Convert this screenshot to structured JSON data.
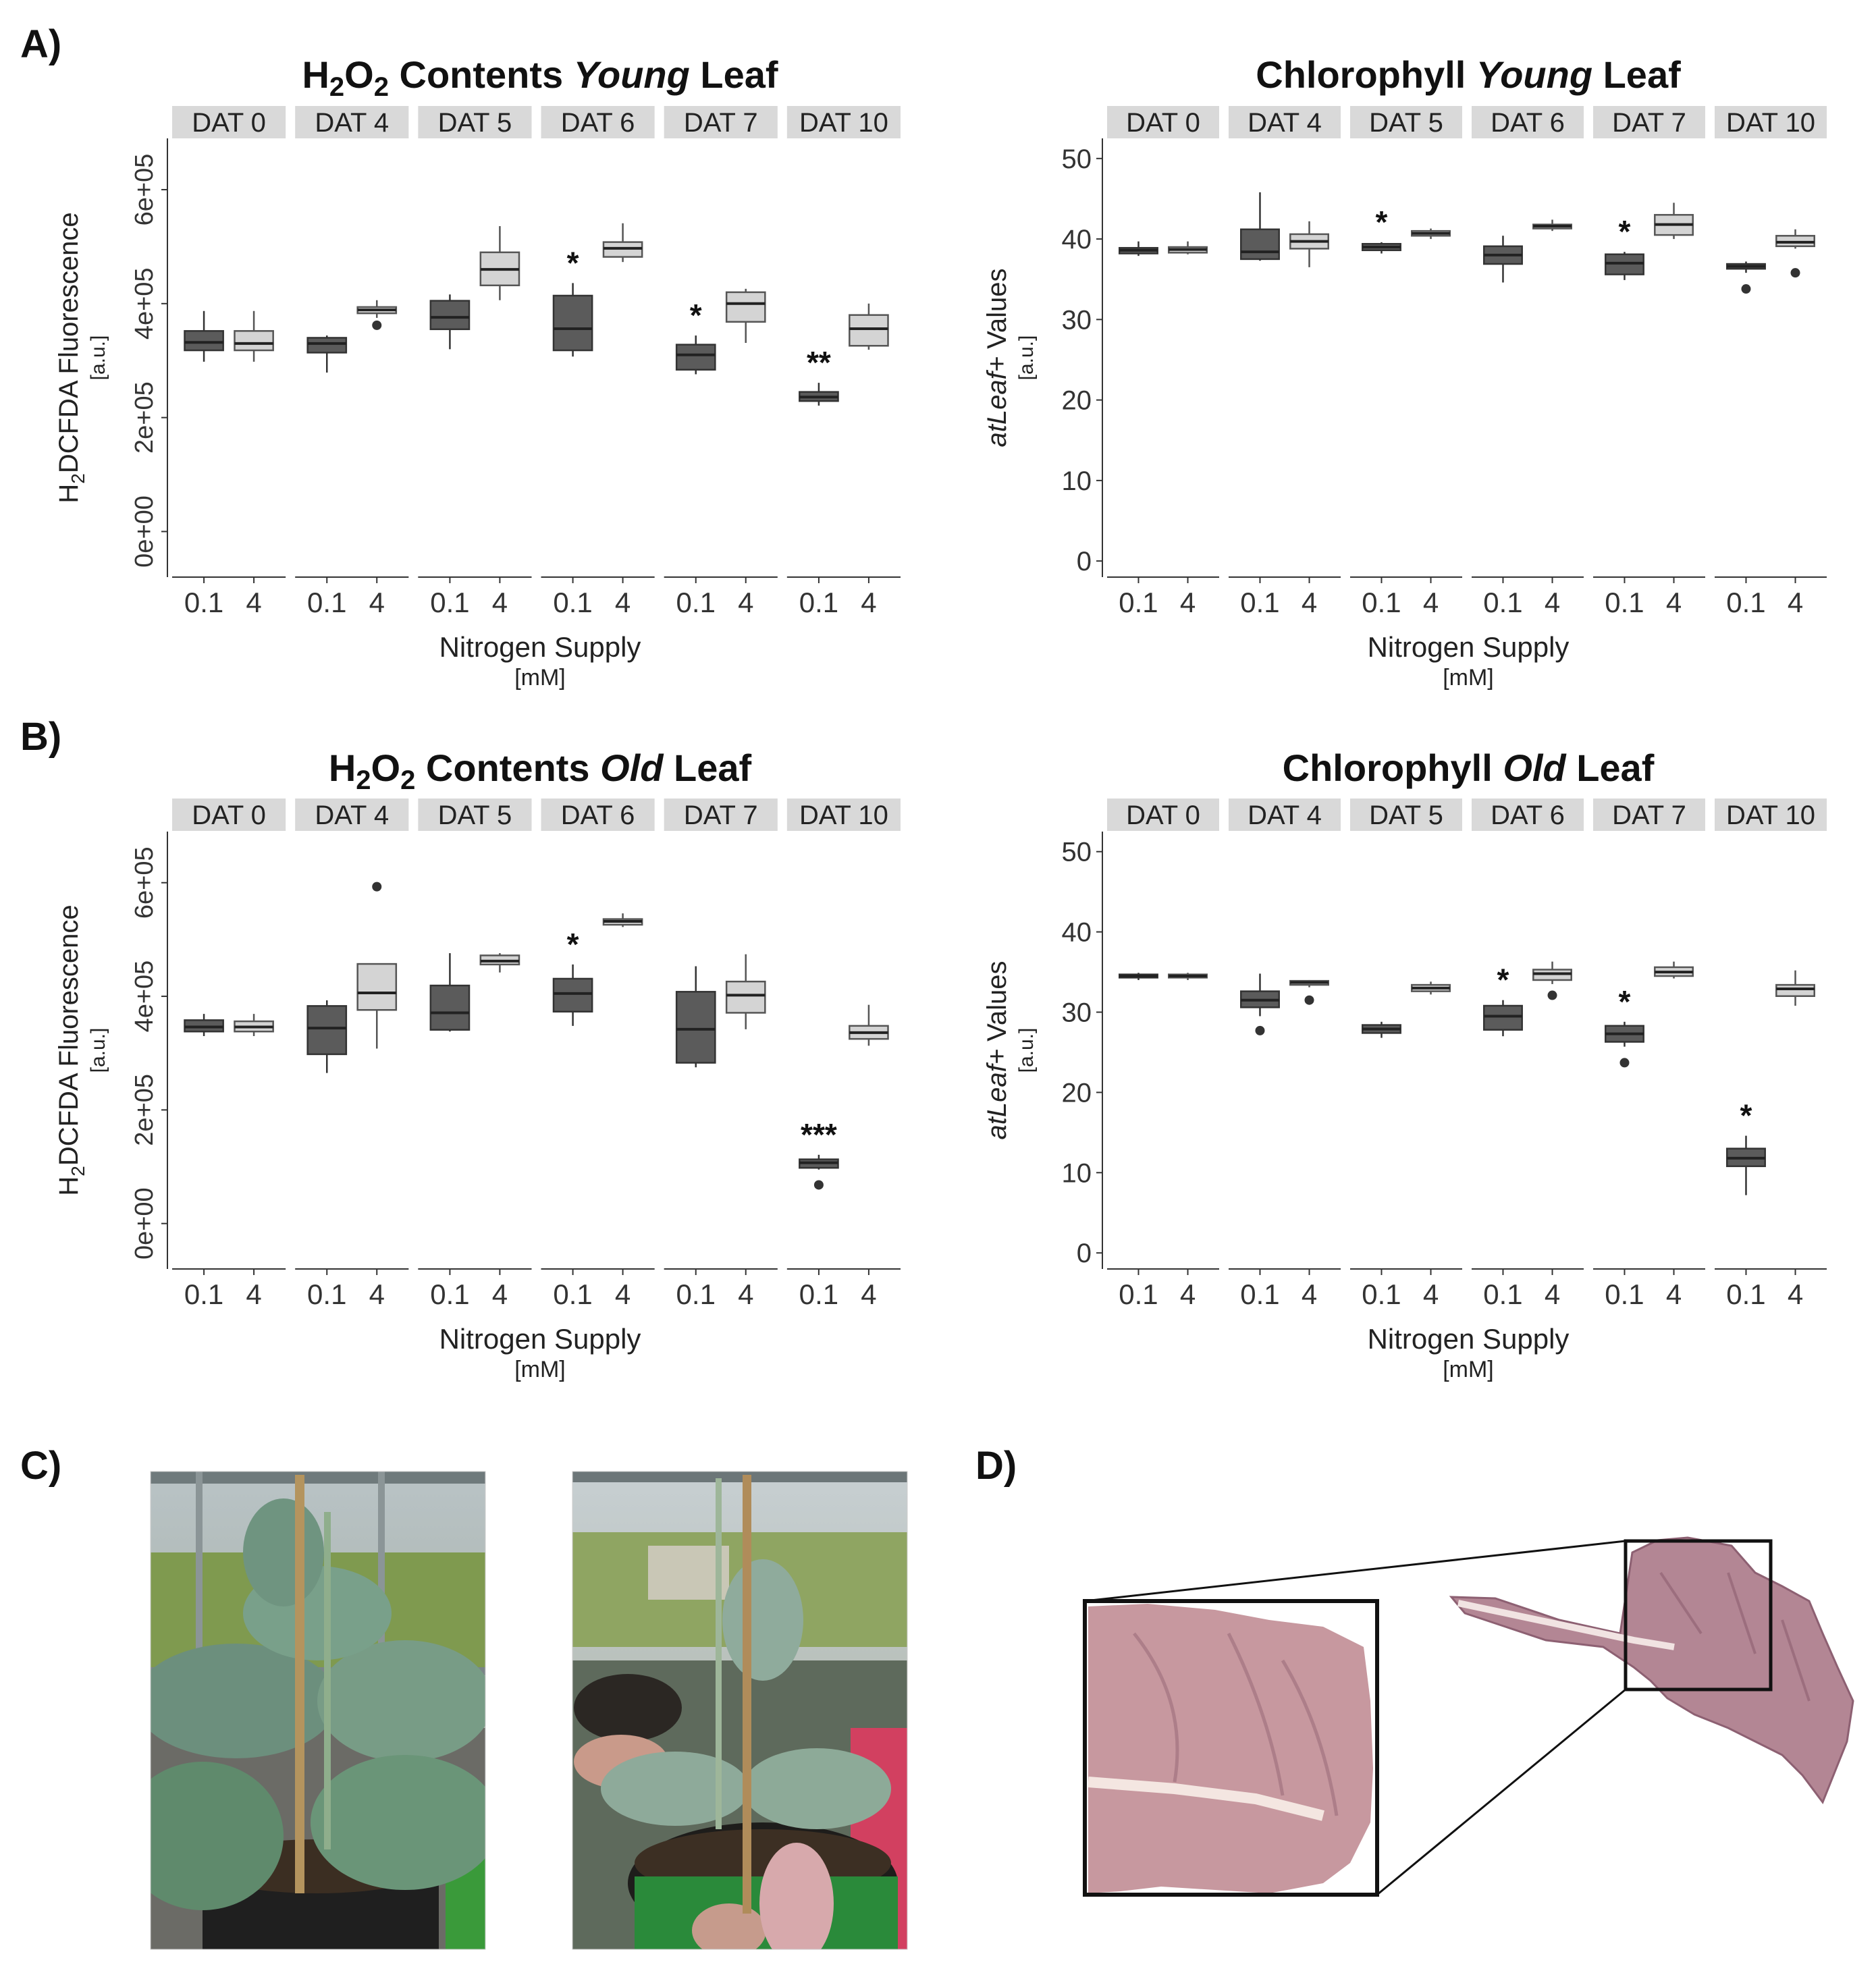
{
  "panel_labels": {
    "a": "A)",
    "b": "B)",
    "c": "C)",
    "d": "D)"
  },
  "colors": {
    "low_n": "#5b5b5b",
    "high_n": "#d4d4d4",
    "strip": "#d9d9d9",
    "axis": "#333333"
  },
  "photos": {
    "c_left": "healthy-plant-photo",
    "c_right": "senescing-plant-photo",
    "d_leaf": "purple-leaf-photo",
    "d_inset": "leaf-zoom-inset"
  },
  "chart_data": [
    {
      "id": "h2o2_young",
      "type": "boxplot",
      "title": {
        "pre": "H",
        "sub1": "2",
        "mid": "O",
        "sub2": "2",
        "post": " Contents ",
        "italic": "Young",
        "end": " Leaf"
      },
      "ylabel": {
        "pre": "H",
        "sub": "2",
        "post": "DCFDA Fluorescence",
        "unit": "[a.u.]"
      },
      "xlabel": "Nitrogen Supply",
      "xunit": "[mM]",
      "ylim": [
        -80000,
        690000
      ],
      "yticks": [
        0,
        200000,
        400000,
        600000
      ],
      "ytick_labels": [
        "0e+00",
        "2e+05",
        "4e+05",
        "6e+05"
      ],
      "ytick_rotated": true,
      "facets": [
        "DAT 0",
        "DAT 4",
        "DAT 5",
        "DAT 6",
        "DAT 7",
        "DAT 10"
      ],
      "categories": [
        "0.1",
        "4"
      ],
      "boxes": [
        [
          {
            "min": 298000,
            "q1": 318000,
            "med": 332000,
            "q3": 352000,
            "max": 387000,
            "out": [],
            "sig": ""
          },
          {
            "min": 298000,
            "q1": 318000,
            "med": 330000,
            "q3": 352000,
            "max": 387000,
            "out": [],
            "sig": ""
          }
        ],
        [
          {
            "min": 279000,
            "q1": 314000,
            "med": 330000,
            "q3": 340000,
            "max": 344000,
            "out": [],
            "sig": ""
          },
          {
            "min": 375000,
            "q1": 383000,
            "med": 389000,
            "q3": 394000,
            "max": 406000,
            "out": [
              362000
            ],
            "sig": ""
          }
        ],
        [
          {
            "min": 320000,
            "q1": 355000,
            "med": 376000,
            "q3": 405000,
            "max": 416000,
            "out": [],
            "sig": ""
          },
          {
            "min": 406000,
            "q1": 432000,
            "med": 460000,
            "q3": 490000,
            "max": 536000,
            "out": [],
            "sig": ""
          }
        ],
        [
          {
            "min": 307000,
            "q1": 318000,
            "med": 356000,
            "q3": 414000,
            "max": 436000,
            "out": [],
            "sig": "*"
          },
          {
            "min": 473000,
            "q1": 482000,
            "med": 497000,
            "q3": 508000,
            "max": 541000,
            "out": [],
            "sig": ""
          }
        ],
        [
          {
            "min": 276000,
            "q1": 284000,
            "med": 310000,
            "q3": 328000,
            "max": 344000,
            "out": [],
            "sig": "*"
          },
          {
            "min": 331000,
            "q1": 368000,
            "med": 400000,
            "q3": 420000,
            "max": 426000,
            "out": [],
            "sig": ""
          }
        ],
        [
          {
            "min": 221000,
            "q1": 229000,
            "med": 236000,
            "q3": 245000,
            "max": 261000,
            "out": [],
            "sig": "**"
          },
          {
            "min": 319000,
            "q1": 326000,
            "med": 356000,
            "q3": 380000,
            "max": 400000,
            "out": [],
            "sig": ""
          }
        ]
      ]
    },
    {
      "id": "chl_young",
      "type": "boxplot",
      "title": {
        "pre": "Chlorophyll ",
        "italic": "Young",
        "end": " Leaf"
      },
      "ylabel": {
        "italic": "atLeaf+",
        "post": " Values",
        "unit": "[a.u.]"
      },
      "xlabel": "Nitrogen Supply",
      "xunit": "[mM]",
      "ylim": [
        -2,
        52.5
      ],
      "yticks": [
        0,
        10,
        20,
        30,
        40,
        50
      ],
      "ytick_labels": [
        "0",
        "10",
        "20",
        "30",
        "40",
        "50"
      ],
      "ytick_rotated": false,
      "facets": [
        "DAT 0",
        "DAT 4",
        "DAT 5",
        "DAT 6",
        "DAT 7",
        "DAT 10"
      ],
      "categories": [
        "0.1",
        "4"
      ],
      "boxes": [
        [
          {
            "min": 37.9,
            "q1": 38.2,
            "med": 38.6,
            "q3": 38.9,
            "max": 39.7,
            "out": [],
            "sig": ""
          },
          {
            "min": 38.1,
            "q1": 38.3,
            "med": 38.7,
            "q3": 39.0,
            "max": 39.7,
            "out": [],
            "sig": ""
          }
        ],
        [
          {
            "min": 37.3,
            "q1": 37.5,
            "med": 38.4,
            "q3": 41.2,
            "max": 45.8,
            "out": [],
            "sig": ""
          },
          {
            "min": 36.5,
            "q1": 38.8,
            "med": 39.7,
            "q3": 40.6,
            "max": 42.2,
            "out": [],
            "sig": ""
          }
        ],
        [
          {
            "min": 38.2,
            "q1": 38.6,
            "med": 39.0,
            "q3": 39.4,
            "max": 39.6,
            "out": [],
            "sig": "*"
          },
          {
            "min": 40.0,
            "q1": 40.4,
            "med": 40.7,
            "q3": 41.0,
            "max": 41.3,
            "out": [],
            "sig": ""
          }
        ],
        [
          {
            "min": 34.6,
            "q1": 36.9,
            "med": 38.0,
            "q3": 39.1,
            "max": 40.4,
            "out": [],
            "sig": ""
          },
          {
            "min": 41.0,
            "q1": 41.3,
            "med": 41.6,
            "q3": 41.8,
            "max": 42.4,
            "out": [],
            "sig": ""
          }
        ],
        [
          {
            "min": 34.9,
            "q1": 35.6,
            "med": 37.0,
            "q3": 38.1,
            "max": 38.4,
            "out": [],
            "sig": "*"
          },
          {
            "min": 40.0,
            "q1": 40.5,
            "med": 41.8,
            "q3": 43.0,
            "max": 44.5,
            "out": [],
            "sig": ""
          }
        ],
        [
          {
            "min": 35.8,
            "q1": 36.3,
            "med": 36.6,
            "q3": 36.9,
            "max": 37.2,
            "out": [
              33.8
            ],
            "sig": ""
          },
          {
            "min": 38.8,
            "q1": 39.1,
            "med": 39.6,
            "q3": 40.4,
            "max": 41.2,
            "out": [
              35.8
            ],
            "sig": ""
          }
        ]
      ]
    },
    {
      "id": "h2o2_old",
      "type": "boxplot",
      "title": {
        "pre": "H",
        "sub1": "2",
        "mid": "O",
        "sub2": "2",
        "post": " Contents ",
        "italic": "Old",
        "end": " Leaf"
      },
      "ylabel": {
        "pre": "H",
        "sub": "2",
        "post": "DCFDA Fluorescence",
        "unit": "[a.u.]"
      },
      "xlabel": "Nitrogen Supply",
      "xunit": "[mM]",
      "ylim": [
        -80000,
        690000
      ],
      "yticks": [
        0,
        200000,
        400000,
        600000
      ],
      "ytick_labels": [
        "0e+00",
        "2e+05",
        "4e+05",
        "6e+05"
      ],
      "ytick_rotated": true,
      "facets": [
        "DAT 0",
        "DAT 4",
        "DAT 5",
        "DAT 6",
        "DAT 7",
        "DAT 10"
      ],
      "categories": [
        "0.1",
        "4"
      ],
      "boxes": [
        [
          {
            "min": 330000,
            "q1": 338000,
            "med": 346000,
            "q3": 358000,
            "max": 369000,
            "out": [],
            "sig": ""
          },
          {
            "min": 330000,
            "q1": 338000,
            "med": 346000,
            "q3": 356000,
            "max": 369000,
            "out": [],
            "sig": ""
          }
        ],
        [
          {
            "min": 265000,
            "q1": 298000,
            "med": 344000,
            "q3": 383000,
            "max": 393000,
            "out": [],
            "sig": ""
          },
          {
            "min": 308000,
            "q1": 376000,
            "med": 406000,
            "q3": 457000,
            "max": 457000,
            "out": [
              593000
            ],
            "sig": ""
          }
        ],
        [
          {
            "min": 338000,
            "q1": 341000,
            "med": 371000,
            "q3": 419000,
            "max": 476000,
            "out": [],
            "sig": ""
          },
          {
            "min": 442000,
            "q1": 456000,
            "med": 462000,
            "q3": 472000,
            "max": 476000,
            "out": [],
            "sig": ""
          }
        ],
        [
          {
            "min": 348000,
            "q1": 373000,
            "med": 405000,
            "q3": 431000,
            "max": 456000,
            "out": [],
            "sig": "*"
          },
          {
            "min": 522000,
            "q1": 526000,
            "med": 532000,
            "q3": 536000,
            "max": 546000,
            "out": [],
            "sig": ""
          }
        ],
        [
          {
            "min": 275000,
            "q1": 283000,
            "med": 342000,
            "q3": 408000,
            "max": 453000,
            "out": [],
            "sig": ""
          },
          {
            "min": 342000,
            "q1": 371000,
            "med": 402000,
            "q3": 426000,
            "max": 474000,
            "out": [],
            "sig": ""
          }
        ],
        [
          {
            "min": 95000,
            "q1": 98000,
            "med": 107000,
            "q3": 113000,
            "max": 121000,
            "out": [
              68000
            ],
            "sig": "***"
          },
          {
            "min": 313000,
            "q1": 325000,
            "med": 336000,
            "q3": 348000,
            "max": 385000,
            "out": [],
            "sig": ""
          }
        ]
      ]
    },
    {
      "id": "chl_old",
      "type": "boxplot",
      "title": {
        "pre": "Chlorophyll ",
        "italic": "Old",
        "end": " Leaf"
      },
      "ylabel": {
        "italic": "atLeaf+",
        "post": " Values",
        "unit": "[a.u.]"
      },
      "xlabel": "Nitrogen Supply",
      "xunit": "[mM]",
      "ylim": [
        -2,
        52.5
      ],
      "yticks": [
        0,
        10,
        20,
        30,
        40,
        50
      ],
      "ytick_labels": [
        "0",
        "10",
        "20",
        "30",
        "40",
        "50"
      ],
      "ytick_rotated": false,
      "facets": [
        "DAT 0",
        "DAT 4",
        "DAT 5",
        "DAT 6",
        "DAT 7",
        "DAT 10"
      ],
      "categories": [
        "0.1",
        "4"
      ],
      "boxes": [
        [
          {
            "min": 34.0,
            "q1": 34.3,
            "med": 34.5,
            "q3": 34.7,
            "max": 34.9,
            "out": [],
            "sig": ""
          },
          {
            "min": 34.0,
            "q1": 34.3,
            "med": 34.5,
            "q3": 34.7,
            "max": 34.9,
            "out": [],
            "sig": ""
          }
        ],
        [
          {
            "min": 29.5,
            "q1": 30.6,
            "med": 31.5,
            "q3": 32.6,
            "max": 34.8,
            "out": [
              27.7
            ],
            "sig": ""
          },
          {
            "min": 33.1,
            "q1": 33.4,
            "med": 33.7,
            "q3": 33.9,
            "max": 34.0,
            "out": [
              31.5
            ],
            "sig": ""
          }
        ],
        [
          {
            "min": 26.8,
            "q1": 27.4,
            "med": 27.9,
            "q3": 28.4,
            "max": 28.8,
            "out": [],
            "sig": ""
          },
          {
            "min": 32.2,
            "q1": 32.6,
            "med": 33.0,
            "q3": 33.4,
            "max": 33.8,
            "out": [],
            "sig": ""
          }
        ],
        [
          {
            "min": 27.0,
            "q1": 27.8,
            "med": 29.5,
            "q3": 30.8,
            "max": 31.5,
            "out": [],
            "sig": "*"
          },
          {
            "min": 33.5,
            "q1": 34.0,
            "med": 34.8,
            "q3": 35.3,
            "max": 36.3,
            "out": [
              32.1
            ],
            "sig": ""
          }
        ],
        [
          {
            "min": 25.7,
            "q1": 26.3,
            "med": 27.3,
            "q3": 28.3,
            "max": 28.8,
            "out": [
              23.7
            ],
            "sig": "*"
          },
          {
            "min": 34.2,
            "q1": 34.5,
            "med": 35.0,
            "q3": 35.6,
            "max": 36.3,
            "out": [],
            "sig": ""
          }
        ],
        [
          {
            "min": 7.2,
            "q1": 10.8,
            "med": 11.8,
            "q3": 13.0,
            "max": 14.6,
            "out": [],
            "sig": "*"
          },
          {
            "min": 30.8,
            "q1": 32.0,
            "med": 32.9,
            "q3": 33.4,
            "max": 35.2,
            "out": [],
            "sig": ""
          }
        ]
      ]
    }
  ]
}
